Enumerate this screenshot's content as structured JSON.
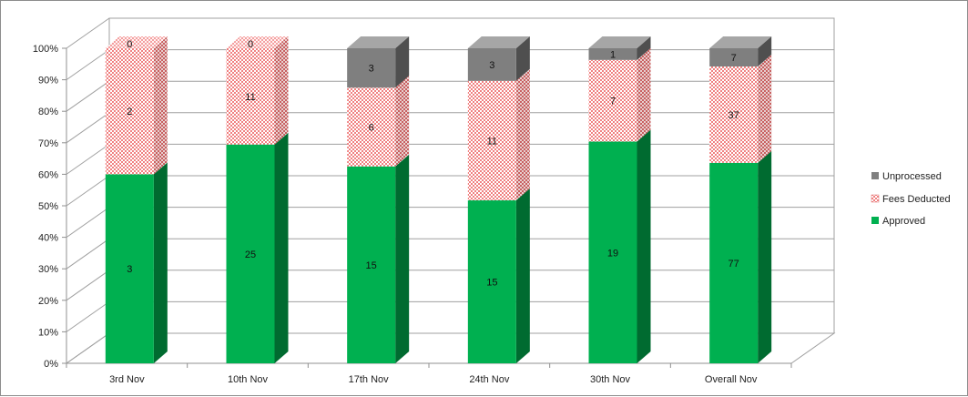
{
  "chart_data": {
    "type": "stacked-bar-100-3d",
    "title": "",
    "xlabel": "",
    "ylabel": "",
    "ylim": [
      0,
      100
    ],
    "y_ticks": [
      "0%",
      "10%",
      "20%",
      "30%",
      "40%",
      "50%",
      "60%",
      "70%",
      "80%",
      "90%",
      "100%"
    ],
    "categories": [
      "3rd Nov",
      "10th Nov",
      "17th Nov",
      "24th Nov",
      "30th Nov",
      "Overall Nov"
    ],
    "series": [
      {
        "name": "Approved",
        "values": [
          3,
          25,
          15,
          15,
          19,
          77
        ],
        "color": "#00b050"
      },
      {
        "name": "Fees Deducted",
        "values": [
          2,
          11,
          6,
          11,
          7,
          37
        ],
        "color": "#ff9a9a"
      },
      {
        "name": "Unprocessed",
        "values": [
          0,
          0,
          3,
          3,
          1,
          7
        ],
        "color": "#808080"
      }
    ],
    "legend": {
      "position": "right",
      "entries": [
        "Unprocessed",
        "Fees Deducted",
        "Approved"
      ]
    },
    "grid": true
  }
}
